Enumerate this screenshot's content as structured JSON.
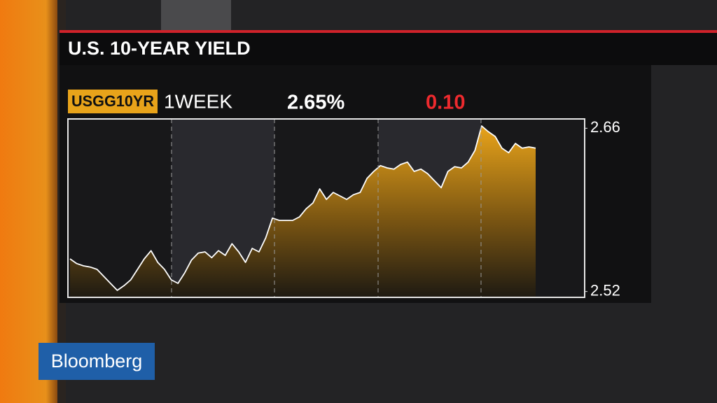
{
  "chart_data": {
    "type": "area",
    "title": "U.S. 10-YEAR YIELD",
    "ticker": "USGG10YR",
    "period": "1WEEK",
    "last_value": "2.65%",
    "change": "0.10",
    "color": "#e8a31a",
    "values": [
      2.548,
      2.544,
      2.542,
      2.541,
      2.539,
      2.533,
      2.527,
      2.521,
      2.525,
      2.53,
      2.539,
      2.548,
      2.555,
      2.545,
      2.539,
      2.53,
      2.527,
      2.536,
      2.547,
      2.553,
      2.554,
      2.549,
      2.555,
      2.551,
      2.561,
      2.554,
      2.545,
      2.557,
      2.554,
      2.566,
      2.583,
      2.581,
      2.581,
      2.581,
      2.584,
      2.591,
      2.596,
      2.608,
      2.599,
      2.605,
      2.602,
      2.599,
      2.603,
      2.605,
      2.617,
      2.623,
      2.628,
      2.626,
      2.625,
      2.629,
      2.631,
      2.623,
      2.625,
      2.621,
      2.615,
      2.609,
      2.623,
      2.627,
      2.626,
      2.631,
      2.641,
      2.662,
      2.657,
      2.653,
      2.643,
      2.639,
      2.647,
      2.643,
      2.644,
      2.643
    ],
    "ylim": [
      2.515,
      2.668
    ],
    "yticks": [
      2.66,
      2.52
    ]
  },
  "logo": "Bloomberg"
}
